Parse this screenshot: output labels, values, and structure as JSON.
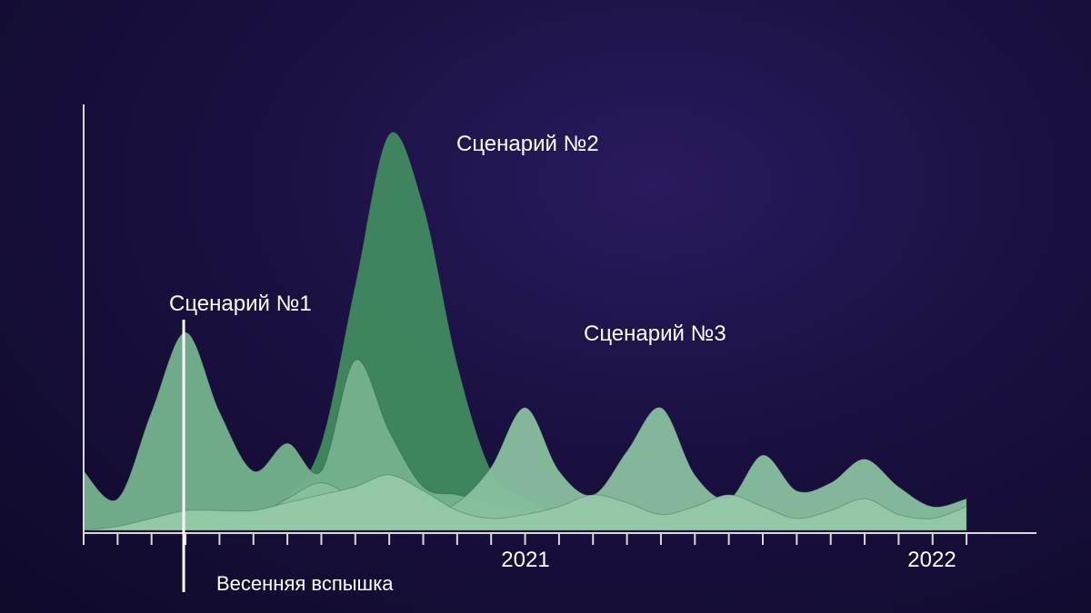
{
  "chart_data": {
    "type": "area",
    "title": "",
    "xlabel": "",
    "ylabel": "",
    "x_tick_labels": [
      "2021",
      "2022"
    ],
    "x_ticks": [
      "2020-01",
      "2020-02",
      "2020-03",
      "2020-04",
      "2020-05",
      "2020-06",
      "2020-07",
      "2020-08",
      "2020-09",
      "2020-10",
      "2020-11",
      "2020-12",
      "2021-01",
      "2021-02",
      "2021-03",
      "2021-04",
      "2021-05",
      "2021-06",
      "2021-07",
      "2021-08",
      "2021-09",
      "2021-10",
      "2021-11",
      "2021-12",
      "2022-01",
      "2022-02",
      "2022-03"
    ],
    "event_label": "Весенняя вспышка",
    "event_x": "2020-04",
    "series": [
      {
        "name": "Сценарий №2",
        "x": [
          "2020-01",
          "2020-02",
          "2020-03",
          "2020-04",
          "2020-05",
          "2020-06",
          "2020-07",
          "2020-08",
          "2020-09",
          "2020-10",
          "2020-11",
          "2020-12",
          "2021-01",
          "2021-02",
          "2021-03"
        ],
        "values": [
          0,
          0,
          0,
          0,
          0,
          0,
          8,
          22,
          62,
          100,
          82,
          42,
          15,
          8,
          4
        ],
        "color": "#3f8a60"
      },
      {
        "name": "Сценарий №1",
        "x": [
          "2020-01",
          "2020-02",
          "2020-03",
          "2020-04",
          "2020-05",
          "2020-06",
          "2020-07",
          "2020-08",
          "2020-09",
          "2020-10",
          "2020-11",
          "2020-12",
          "2021-01",
          "2021-02",
          "2021-03",
          "2021-04",
          "2021-05",
          "2021-06",
          "2021-07",
          "2021-08",
          "2021-09",
          "2021-10",
          "2021-11",
          "2021-12",
          "2022-01",
          "2022-02",
          "2022-03"
        ],
        "values": [
          15,
          8,
          30,
          50,
          30,
          15,
          22,
          15,
          43,
          25,
          11,
          9,
          7,
          5,
          4,
          3,
          2,
          1,
          0,
          0,
          0,
          0,
          0,
          0,
          0,
          0,
          0
        ],
        "color": "#74b28c"
      },
      {
        "name": "Сценарий №3",
        "x": [
          "2020-01",
          "2020-02",
          "2020-03",
          "2020-04",
          "2020-05",
          "2020-06",
          "2020-07",
          "2020-08",
          "2020-09",
          "2020-10",
          "2020-11",
          "2020-12",
          "2021-01",
          "2021-02",
          "2021-03",
          "2021-04",
          "2021-05",
          "2021-06",
          "2021-07",
          "2021-08",
          "2021-09",
          "2021-10",
          "2021-11",
          "2021-12",
          "2022-01",
          "2022-02",
          "2022-03"
        ],
        "values": [
          0,
          0,
          0,
          0,
          0,
          3,
          8,
          12,
          8,
          5,
          4,
          7,
          16,
          31,
          15,
          9,
          20,
          31,
          14,
          8,
          19,
          10,
          12,
          18,
          11,
          6,
          8
        ],
        "color": "#86c09d"
      },
      {
        "name": "",
        "x": [
          "2020-01",
          "2020-02",
          "2020-03",
          "2020-04",
          "2020-05",
          "2020-06",
          "2020-07",
          "2020-08",
          "2020-09",
          "2020-10",
          "2020-11",
          "2020-12",
          "2021-01",
          "2021-02",
          "2021-03",
          "2021-04",
          "2021-05",
          "2021-06",
          "2021-07",
          "2021-08",
          "2021-09",
          "2021-10",
          "2021-11",
          "2021-12",
          "2022-01",
          "2022-02",
          "2022-03"
        ],
        "values": [
          0,
          1,
          3,
          5,
          5,
          5,
          7,
          9,
          11,
          14,
          10,
          5,
          3,
          4,
          6,
          9,
          7,
          4,
          6,
          9,
          6,
          3,
          5,
          8,
          4,
          3,
          6
        ],
        "color": "#94c9a8"
      }
    ],
    "series_labels": [
      "Сценарий №1",
      "Сценарий №2",
      "Сценарий №3"
    ],
    "legend": "none",
    "grid": false,
    "yaxis_visible": true
  }
}
